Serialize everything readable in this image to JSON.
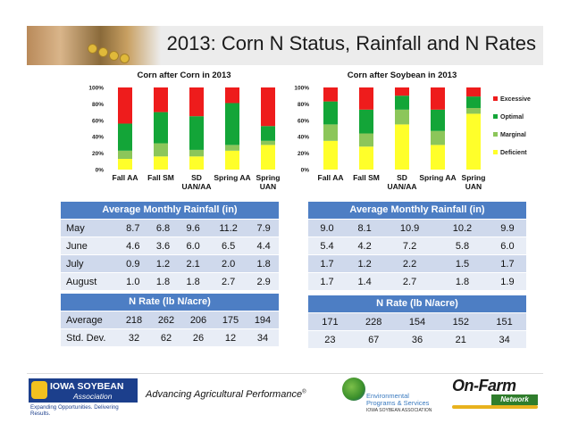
{
  "title": "2013: Corn N Status, Rainfall and N Rates",
  "colors": {
    "excessive": "#ee1c1c",
    "optimal": "#13a538",
    "marginal": "#8cc65a",
    "deficient": "#ffff2a",
    "table_header": "#4d7ec4"
  },
  "chart_data": [
    {
      "type": "bar",
      "stacked": true,
      "title": "Corn after Corn  in 2013",
      "categories": [
        "Fall AA",
        "Fall SM",
        "SD UAN/AA",
        "Spring AA",
        "Spring UAN"
      ],
      "category_lines": [
        [
          "Fall AA"
        ],
        [
          "Fall SM"
        ],
        [
          "SD",
          "UAN/AA"
        ],
        [
          "Spring AA"
        ],
        [
          "Spring",
          "UAN"
        ]
      ],
      "y_ticks": [
        "0%",
        "20%",
        "40%",
        "60%",
        "80%",
        "100%"
      ],
      "ylim": [
        0,
        100
      ],
      "series": [
        {
          "name": "Deficient",
          "values": [
            13,
            16,
            16,
            23,
            30
          ]
        },
        {
          "name": "Marginal",
          "values": [
            10,
            16,
            8,
            7,
            5
          ]
        },
        {
          "name": "Optimal",
          "values": [
            33,
            38,
            41,
            51,
            18
          ]
        },
        {
          "name": "Excessive",
          "values": [
            44,
            30,
            35,
            19,
            47
          ]
        }
      ]
    },
    {
      "type": "bar",
      "stacked": true,
      "title": "Corn after Soybean in 2013",
      "categories": [
        "Fall AA",
        "Fall SM",
        "SD UAN/AA",
        "Spring AA",
        "Spring UAN"
      ],
      "category_lines": [
        [
          "Fall AA"
        ],
        [
          "Fall SM"
        ],
        [
          "SD",
          "UAN/AA"
        ],
        [
          "Spring AA"
        ],
        [
          "Spring",
          "UAN"
        ]
      ],
      "y_ticks": [
        "0%",
        "20%",
        "40%",
        "60%",
        "80%",
        "100%"
      ],
      "ylim": [
        0,
        100
      ],
      "legend": "right",
      "series": [
        {
          "name": "Deficient",
          "values": [
            35,
            28,
            55,
            30,
            68
          ]
        },
        {
          "name": "Marginal",
          "values": [
            20,
            16,
            18,
            17,
            7
          ]
        },
        {
          "name": "Optimal",
          "values": [
            28,
            29,
            17,
            26,
            14
          ]
        },
        {
          "name": "Excessive",
          "values": [
            17,
            27,
            10,
            27,
            11
          ]
        }
      ]
    }
  ],
  "rainfall": {
    "header": "Average Monthly Rainfall (in)",
    "rows": [
      {
        "month": "May",
        "cc": [
          "8.7",
          "6.8",
          "9.6",
          "11.2",
          "7.9"
        ],
        "cs": [
          "9.0",
          "8.1",
          "10.9",
          "10.2",
          "9.9"
        ]
      },
      {
        "month": "June",
        "cc": [
          "4.6",
          "3.6",
          "6.0",
          "6.5",
          "4.4"
        ],
        "cs": [
          "5.4",
          "4.2",
          "7.2",
          "5.8",
          "6.0"
        ]
      },
      {
        "month": "July",
        "cc": [
          "0.9",
          "1.2",
          "2.1",
          "2.0",
          "1.8"
        ],
        "cs": [
          "1.7",
          "1.2",
          "2.2",
          "1.5",
          "1.7"
        ]
      },
      {
        "month": "August",
        "cc": [
          "1.0",
          "1.8",
          "1.8",
          "2.7",
          "2.9"
        ],
        "cs": [
          "1.7",
          "1.4",
          "2.7",
          "1.8",
          "1.9"
        ]
      }
    ]
  },
  "nrate": {
    "header": "N Rate (lb N/acre)",
    "rows": [
      {
        "label": "Average",
        "cc": [
          "218",
          "262",
          "206",
          "175",
          "194"
        ],
        "cs": [
          "171",
          "228",
          "154",
          "152",
          "151"
        ]
      },
      {
        "label": "Std. Dev.",
        "cc": [
          "32",
          "62",
          "26",
          "12",
          "34"
        ],
        "cs": [
          "23",
          "67",
          "36",
          "21",
          "34"
        ]
      }
    ]
  },
  "footer": {
    "isa_name": "IOWA SOYBEAN",
    "isa_sub": "Association",
    "isa_tag": "Expanding Opportunities. Delivering Results.",
    "tagline": "Advancing Agricultural Performance",
    "tagline_mark": "®",
    "env_line1": "Environmental",
    "env_line2": "Programs & Services",
    "env_line3": "IOWA SOYBEAN ASSOCIATION",
    "onfarm_name": "On-Farm",
    "onfarm_sub": "Network"
  }
}
